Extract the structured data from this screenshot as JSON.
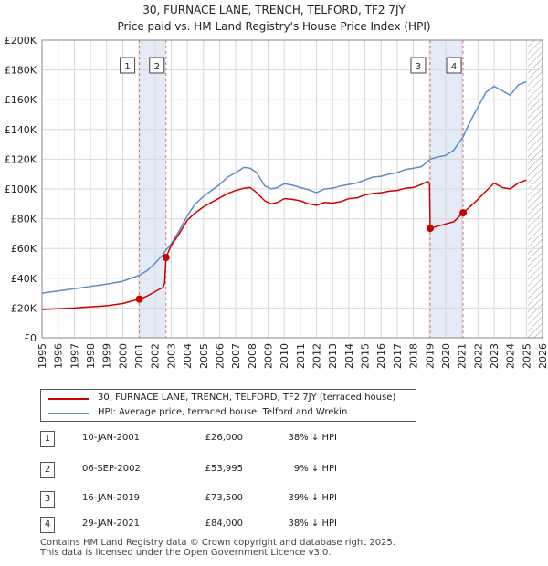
{
  "chart_data": {
    "type": "line",
    "title": "30, FURNACE LANE, TRENCH, TELFORD, TF2 7JY",
    "subtitle": "Price paid vs. HM Land Registry's House Price Index (HPI)",
    "xlim": [
      1995,
      2026
    ],
    "ylim": [
      0,
      200000
    ],
    "y_ticks": [
      0,
      20000,
      40000,
      60000,
      80000,
      100000,
      120000,
      140000,
      160000,
      180000,
      200000
    ],
    "y_tick_labels": [
      "£0",
      "£20K",
      "£40K",
      "£60K",
      "£80K",
      "£100K",
      "£120K",
      "£140K",
      "£160K",
      "£180K",
      "£200K"
    ],
    "x_ticks": [
      "1995",
      "1996",
      "1997",
      "1998",
      "1999",
      "2000",
      "2001",
      "2002",
      "2003",
      "2004",
      "2005",
      "2006",
      "2007",
      "2008",
      "2009",
      "2010",
      "2011",
      "2012",
      "2013",
      "2014",
      "2015",
      "2016",
      "2017",
      "2018",
      "2019",
      "2020",
      "2021",
      "2022",
      "2023",
      "2024",
      "2025",
      "2026"
    ],
    "grid": true,
    "hatch_from": 2025.1,
    "shaded_periods": [
      [
        2001.03,
        2002.68
      ],
      [
        2019.04,
        2021.08
      ]
    ],
    "series": [
      {
        "name": "30, FURNACE LANE, TRENCH, TELFORD, TF2 7JY (terraced house)",
        "color": "#cc0000",
        "x": [
          1995.0,
          1996.0,
          1997.0,
          1998.0,
          1999.0,
          2000.0,
          2001.03,
          2001.5,
          2002.0,
          2002.5,
          2002.6,
          2002.68,
          2003.0,
          2003.5,
          2004.0,
          2004.5,
          2005.0,
          2005.5,
          2006.0,
          2006.5,
          2007.0,
          2007.5,
          2007.9,
          2008.3,
          2008.8,
          2009.2,
          2009.6,
          2010.0,
          2010.5,
          2011.0,
          2011.5,
          2012.0,
          2012.5,
          2013.0,
          2013.5,
          2014.0,
          2014.5,
          2015.0,
          2015.5,
          2016.0,
          2016.5,
          2017.0,
          2017.5,
          2018.0,
          2018.5,
          2018.9,
          2019.0,
          2019.04,
          2019.5,
          2020.0,
          2020.5,
          2021.08,
          2021.5,
          2022.0,
          2022.5,
          2023.0,
          2023.5,
          2024.0,
          2024.5,
          2025.0
        ],
        "y": [
          19000,
          19500,
          20000,
          20800,
          21500,
          23000,
          26000,
          28000,
          31000,
          34000,
          37000,
          53995,
          62000,
          70000,
          79000,
          84000,
          88000,
          91000,
          94000,
          97000,
          99000,
          100500,
          101000,
          97500,
          92000,
          90000,
          91000,
          93500,
          93000,
          92000,
          90000,
          89000,
          91000,
          90500,
          91500,
          93500,
          94000,
          96000,
          97000,
          97500,
          98500,
          99000,
          100500,
          101000,
          103000,
          105000,
          104000,
          73500,
          75000,
          76500,
          78000,
          84000,
          88000,
          93000,
          98500,
          104000,
          101000,
          100000,
          104000,
          106000
        ]
      },
      {
        "name": "HPI: Average price, terraced house, Telford and Wrekin",
        "color": "#5b8dc8",
        "x": [
          1995.0,
          1996.0,
          1997.0,
          1998.0,
          1999.0,
          2000.0,
          2001.03,
          2001.5,
          2002.0,
          2002.5,
          2002.68,
          2003.0,
          2003.5,
          2004.0,
          2004.5,
          2005.0,
          2005.5,
          2006.0,
          2006.5,
          2007.0,
          2007.5,
          2007.9,
          2008.3,
          2008.8,
          2009.2,
          2009.6,
          2010.0,
          2010.5,
          2011.0,
          2011.5,
          2012.0,
          2012.5,
          2013.0,
          2013.5,
          2014.0,
          2014.5,
          2015.0,
          2015.5,
          2016.0,
          2016.5,
          2017.0,
          2017.5,
          2018.0,
          2018.5,
          2019.04,
          2019.5,
          2020.0,
          2020.5,
          2021.08,
          2021.5,
          2022.0,
          2022.5,
          2023.0,
          2023.5,
          2024.0,
          2024.5,
          2025.0
        ],
        "y": [
          30000,
          31500,
          33000,
          34500,
          36000,
          38000,
          42000,
          45000,
          50000,
          56000,
          59000,
          63000,
          72000,
          82000,
          90000,
          95000,
          99000,
          103000,
          108000,
          111000,
          114500,
          114000,
          111000,
          102000,
          100000,
          101000,
          103500,
          102500,
          101000,
          99500,
          97500,
          100000,
          100500,
          102000,
          103000,
          104000,
          106000,
          108000,
          108500,
          110000,
          111000,
          113000,
          114000,
          115000,
          120000,
          121500,
          122500,
          126000,
          135000,
          145000,
          155000,
          165000,
          169000,
          166000,
          163000,
          170000,
          172000
        ]
      }
    ],
    "markers": [
      {
        "label": "1",
        "x": 2001.03,
        "y": 26000
      },
      {
        "label": "2",
        "x": 2002.68,
        "y": 53995
      },
      {
        "label": "3",
        "x": 2019.04,
        "y": 73500
      },
      {
        "label": "4",
        "x": 2021.08,
        "y": 84000
      }
    ]
  },
  "legend": {
    "property_label": "30, FURNACE LANE, TRENCH, TELFORD, TF2 7JY (terraced house)",
    "hpi_label": "HPI: Average price, terraced house, Telford and Wrekin"
  },
  "sales": [
    {
      "num": "1",
      "date": "10-JAN-2001",
      "price": "£26,000",
      "hpi": "38% ↓ HPI"
    },
    {
      "num": "2",
      "date": "06-SEP-2002",
      "price": "£53,995",
      "hpi": "9% ↓ HPI"
    },
    {
      "num": "3",
      "date": "16-JAN-2019",
      "price": "£73,500",
      "hpi": "39% ↓ HPI"
    },
    {
      "num": "4",
      "date": "29-JAN-2021",
      "price": "£84,000",
      "hpi": "38% ↓ HPI"
    }
  ],
  "footer": {
    "line1": "Contains HM Land Registry data © Crown copyright and database right 2025.",
    "line2": "This data is licensed under the Open Government Licence v3.0."
  }
}
